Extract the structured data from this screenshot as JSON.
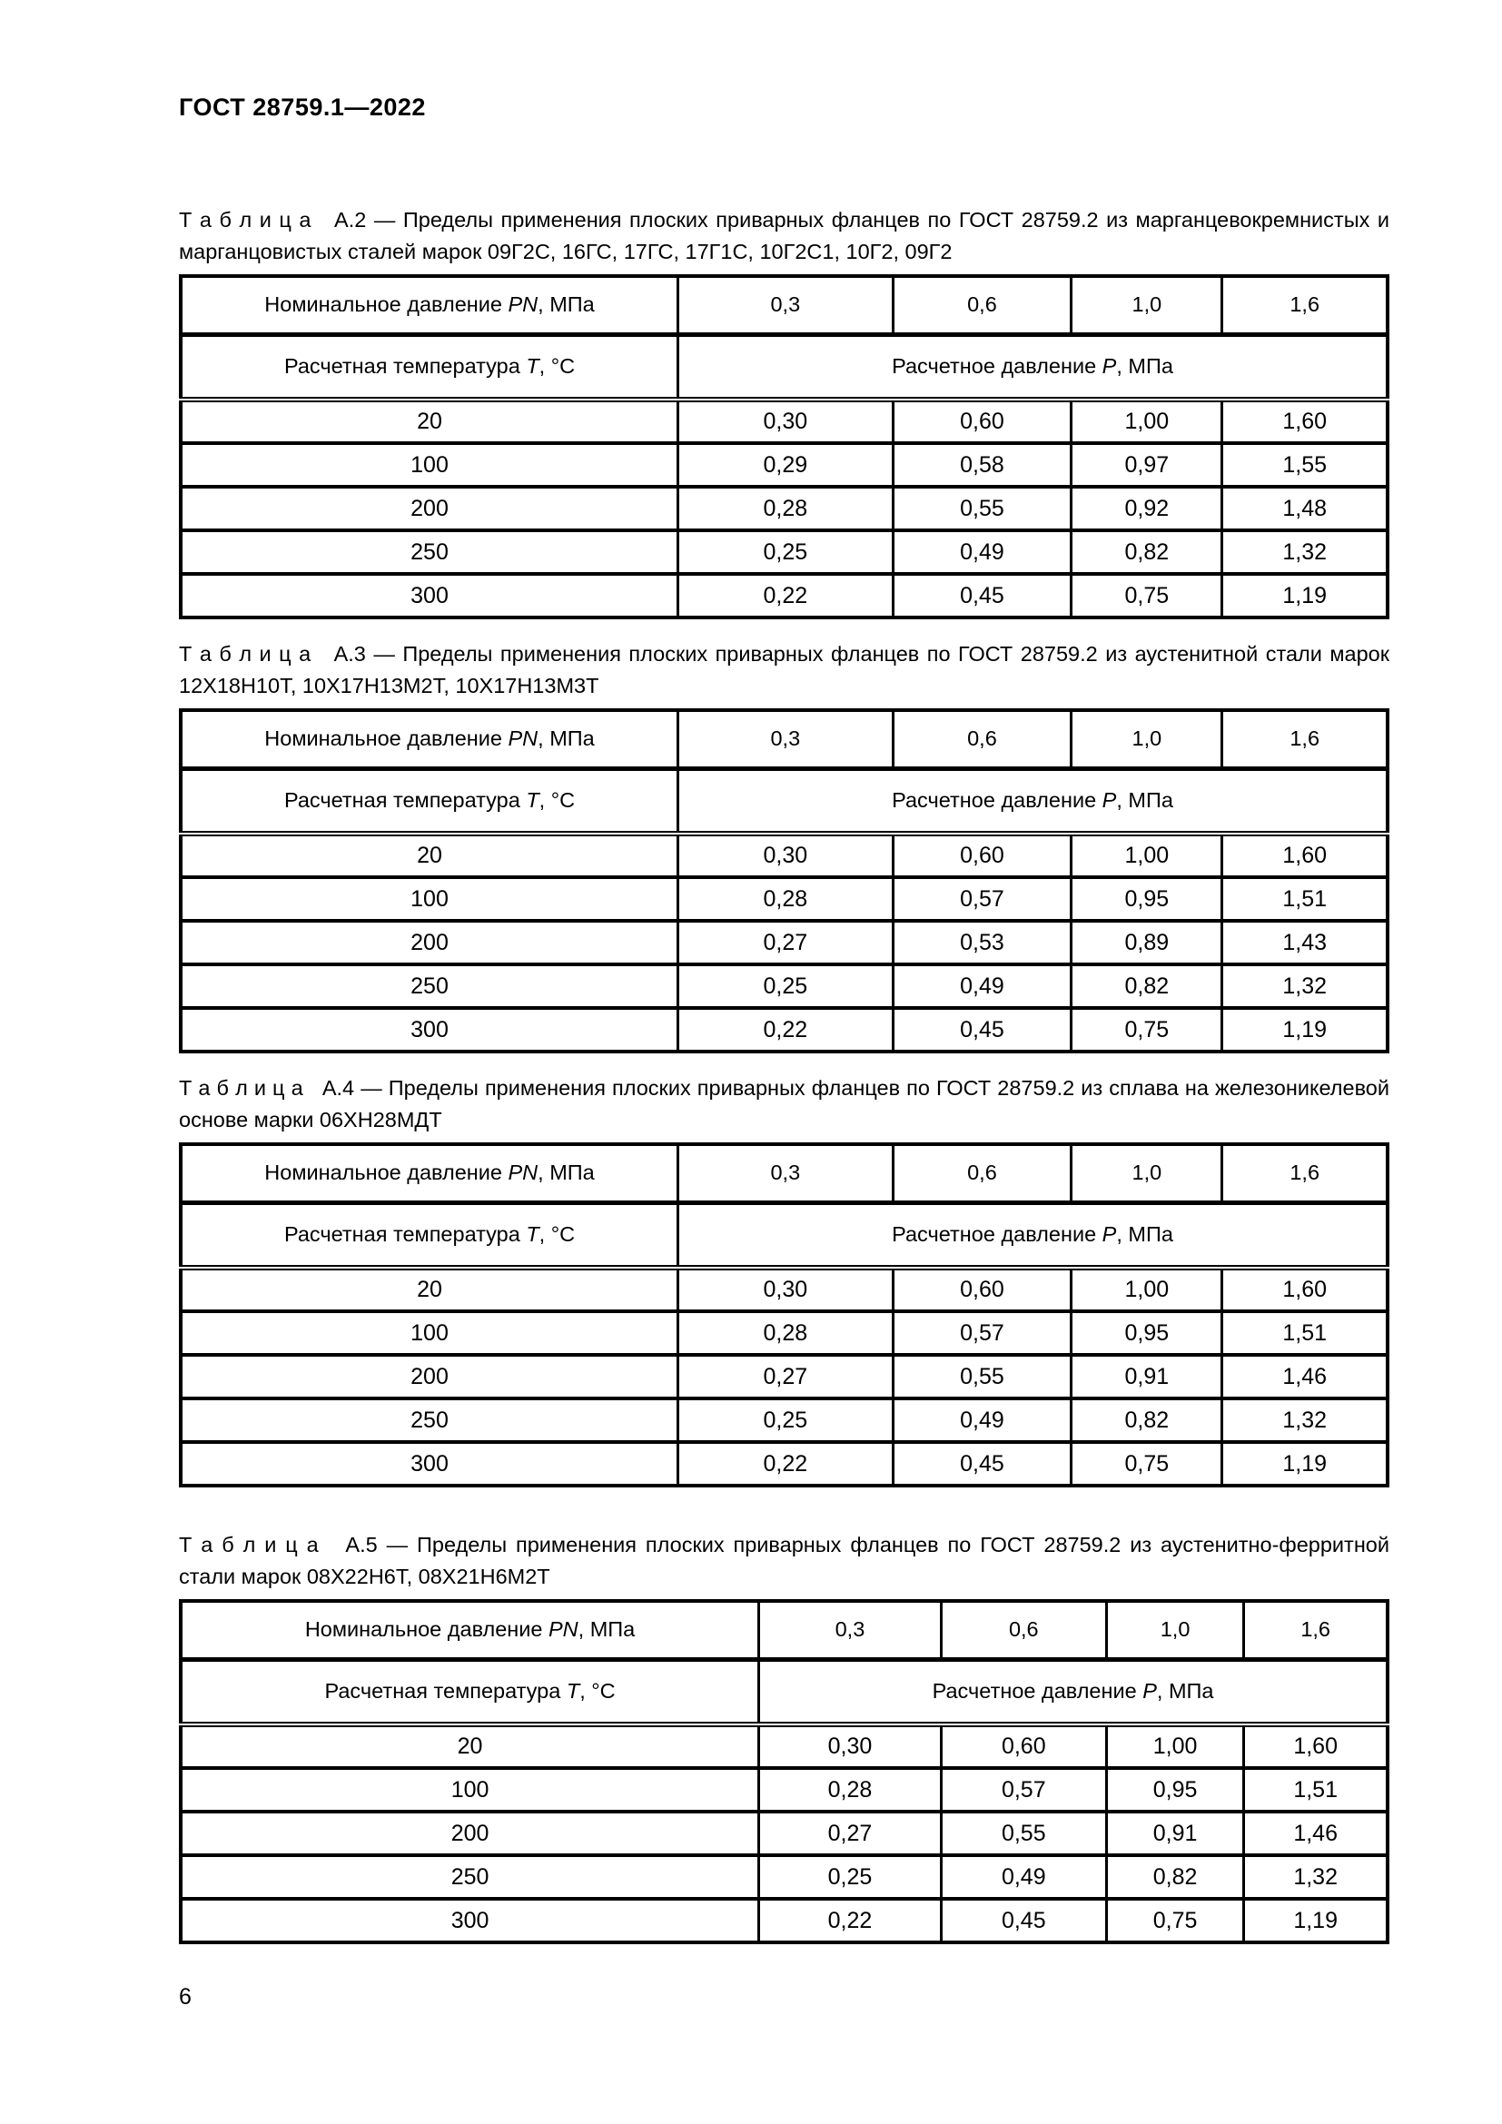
{
  "doc": {
    "header": "ГОСТ 28759.1—2022",
    "page_number": "6"
  },
  "labels": {
    "nominal_prefix": "Номинальное давление ",
    "nominal_var": "PN",
    "nominal_suffix": ", МПа",
    "temp_prefix": "Расчетная температура ",
    "temp_var": "T",
    "temp_suffix": ", °С",
    "pressure_prefix": "Расчетное давление ",
    "pressure_var": "P",
    "pressure_suffix": ", МПа"
  },
  "tables": [
    {
      "caption_label": "Т а б л и ц а   А.2",
      "caption_text": " — Пределы применения плоских приварных фланцев по ГОСТ 28759.2 из марганцевокремнистых и марганцовистых сталей марок 09Г2С, 16ГС, 17ГС, 17Г1С, 10Г2С1, 10Г2, 09Г2",
      "pn_values": [
        "0,3",
        "0,6",
        "1,0",
        "1,6"
      ],
      "rows": [
        [
          "20",
          "0,30",
          "0,60",
          "1,00",
          "1,60"
        ],
        [
          "100",
          "0,29",
          "0,58",
          "0,97",
          "1,55"
        ],
        [
          "200",
          "0,28",
          "0,55",
          "0,92",
          "1,48"
        ],
        [
          "250",
          "0,25",
          "0,49",
          "0,82",
          "1,32"
        ],
        [
          "300",
          "0,22",
          "0,45",
          "0,75",
          "1,19"
        ]
      ]
    },
    {
      "caption_label": "Т а б л и ц а   А.3",
      "caption_text": " — Пределы применения плоских приварных фланцев по ГОСТ 28759.2 из аустенитной стали марок 12Х18Н10Т, 10Х17Н13М2Т, 10Х17Н13М3Т",
      "pn_values": [
        "0,3",
        "0,6",
        "1,0",
        "1,6"
      ],
      "rows": [
        [
          "20",
          "0,30",
          "0,60",
          "1,00",
          "1,60"
        ],
        [
          "100",
          "0,28",
          "0,57",
          "0,95",
          "1,51"
        ],
        [
          "200",
          "0,27",
          "0,53",
          "0,89",
          "1,43"
        ],
        [
          "250",
          "0,25",
          "0,49",
          "0,82",
          "1,32"
        ],
        [
          "300",
          "0,22",
          "0,45",
          "0,75",
          "1,19"
        ]
      ]
    },
    {
      "caption_label": "Т а б л и ц а   А.4",
      "caption_text": " — Пределы применения плоских приварных фланцев по ГОСТ 28759.2 из сплава на железоникелевой основе марки 06ХН28МДТ",
      "pn_values": [
        "0,3",
        "0,6",
        "1,0",
        "1,6"
      ],
      "rows": [
        [
          "20",
          "0,30",
          "0,60",
          "1,00",
          "1,60"
        ],
        [
          "100",
          "0,28",
          "0,57",
          "0,95",
          "1,51"
        ],
        [
          "200",
          "0,27",
          "0,55",
          "0,91",
          "1,46"
        ],
        [
          "250",
          "0,25",
          "0,49",
          "0,82",
          "1,32"
        ],
        [
          "300",
          "0,22",
          "0,45",
          "0,75",
          "1,19"
        ]
      ]
    },
    {
      "caption_label": "Т а б л и ц а   А.5",
      "caption_text": " — Пределы применения плоских приварных фланцев по ГОСТ 28759.2 из аустенитно-ферритной стали марок 08Х22Н6Т, 08Х21Н6М2Т",
      "pn_values": [
        "0,3",
        "0,6",
        "1,0",
        "1,6"
      ],
      "rows": [
        [
          "20",
          "0,30",
          "0,60",
          "1,00",
          "1,60"
        ],
        [
          "100",
          "0,28",
          "0,57",
          "0,95",
          "1,51"
        ],
        [
          "200",
          "0,27",
          "0,55",
          "0,91",
          "1,46"
        ],
        [
          "250",
          "0,25",
          "0,49",
          "0,82",
          "1,32"
        ],
        [
          "300",
          "0,22",
          "0,45",
          "0,75",
          "1,19"
        ]
      ]
    }
  ]
}
